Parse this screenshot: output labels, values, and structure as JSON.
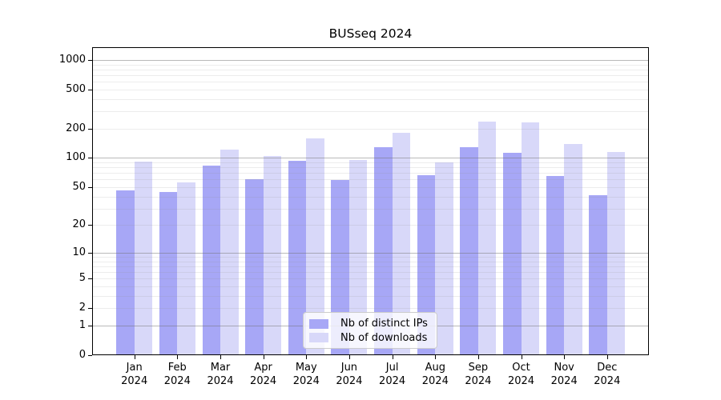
{
  "title": "BUSseq 2024",
  "colors": {
    "distinct_ips_bar": "#a7a7f6",
    "downloads_bar": "#d8d8f9",
    "major_gridline": "#b4b4b4",
    "minor_gridline": "#e9e9e9",
    "axis": "#000000",
    "legend_border": "#cccccc"
  },
  "legend": {
    "items": [
      {
        "label": "Nb of distinct IPs",
        "color": "#a7a7f6"
      },
      {
        "label": "Nb of downloads",
        "color": "#d8d8f9"
      }
    ]
  },
  "chart_data": {
    "type": "bar",
    "title": "BUSseq 2024",
    "categories": [
      "Jan 2024",
      "Feb 2024",
      "Mar 2024",
      "Apr 2024",
      "May 2024",
      "Jun 2024",
      "Jul 2024",
      "Aug 2024",
      "Sep 2024",
      "Oct 2024",
      "Nov 2024",
      "Dec 2024"
    ],
    "series": [
      {
        "name": "Nb of distinct IPs",
        "color": "#a7a7f6",
        "values": [
          46,
          45,
          84,
          61,
          94,
          59,
          130,
          67,
          128,
          114,
          65,
          41
        ]
      },
      {
        "name": "Nb of downloads",
        "color": "#d8d8f9",
        "values": [
          92,
          56,
          122,
          105,
          158,
          96,
          182,
          91,
          238,
          232,
          139,
          115
        ]
      }
    ],
    "xlabel": "",
    "ylabel": "",
    "y_axis": {
      "scale": "log10(1+v)",
      "tick_values": [
        1000,
        500,
        200,
        100,
        50,
        20,
        10,
        5,
        2,
        1,
        0
      ],
      "range": [
        0,
        1000
      ]
    },
    "grid": {
      "enabled": true,
      "major_at": [
        1,
        10,
        100,
        1000
      ],
      "minor_per_decade": [
        2,
        3,
        4,
        5,
        6,
        7,
        8,
        9
      ],
      "drawn_over_bars": true
    },
    "legend_position": "lower center inside"
  }
}
